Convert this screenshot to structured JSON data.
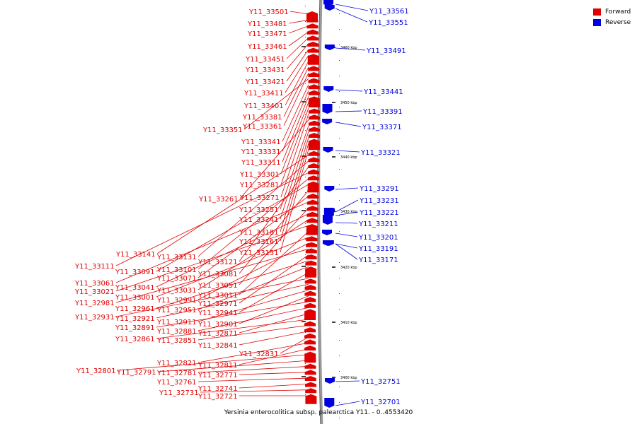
{
  "colors": {
    "forward": "#e00000",
    "reverse": "#0000e0",
    "backbone": "#999999"
  },
  "legend": {
    "forward": "Forward",
    "reverse": "Reverse"
  },
  "caption": "Yersinia enterocolitica subsp. palearctica Y11. - 0..4553420",
  "scale_ticks": [
    {
      "label": "3460 kbp",
      "kbp": 3460
    },
    {
      "label": "3450 kbp",
      "kbp": 3450
    },
    {
      "label": "3440 kbp",
      "kbp": 3440
    },
    {
      "label": "3430 kbp",
      "kbp": 3430
    },
    {
      "label": "3420 kbp",
      "kbp": 3420
    },
    {
      "label": "3410 kbp",
      "kbp": 3410
    },
    {
      "label": "3400 kbp",
      "kbp": 3400
    }
  ],
  "forward_genes": [
    "Y11_33501",
    "Y11_33481",
    "Y11_33471",
    "Y11_33461",
    "Y11_33451",
    "Y11_33431",
    "Y11_33421",
    "Y11_33411",
    "Y11_33401",
    "Y11_33381",
    "Y11_33361",
    "Y11_33351",
    "Y11_33341",
    "Y11_33331",
    "Y11_33311",
    "Y11_33301",
    "Y11_33281",
    "Y11_33271",
    "Y11_33261",
    "Y11_33251",
    "Y11_33241",
    "Y11_33181",
    "Y11_33161",
    "Y11_33151",
    "Y11_33141",
    "Y11_33131",
    "Y11_33121",
    "Y11_33111",
    "Y11_33101",
    "Y11_33091",
    "Y11_33081",
    "Y11_33071",
    "Y11_33061",
    "Y11_33051",
    "Y11_33041",
    "Y11_33031",
    "Y11_33021",
    "Y11_33011",
    "Y11_33001",
    "Y11_32991",
    "Y11_32981",
    "Y11_32971",
    "Y11_32961",
    "Y11_32951",
    "Y11_32941",
    "Y11_32931",
    "Y11_32921",
    "Y11_32911",
    "Y11_32901",
    "Y11_32891",
    "Y11_32881",
    "Y11_32871",
    "Y11_32861",
    "Y11_32851",
    "Y11_32841",
    "Y11_32831",
    "Y11_32821",
    "Y11_32811",
    "Y11_32801",
    "Y11_32791",
    "Y11_32781",
    "Y11_32771",
    "Y11_32761",
    "Y11_32741",
    "Y11_32731",
    "Y11_32721"
  ],
  "reverse_genes": [
    "Y11_33561",
    "Y11_33551",
    "Y11_33491",
    "Y11_33441",
    "Y11_33391",
    "Y11_33371",
    "Y11_33321",
    "Y11_33291",
    "Y11_33231",
    "Y11_33221",
    "Y11_33211",
    "Y11_33201",
    "Y11_33191",
    "Y11_33171",
    "Y11_32751",
    "Y11_32701"
  ]
}
